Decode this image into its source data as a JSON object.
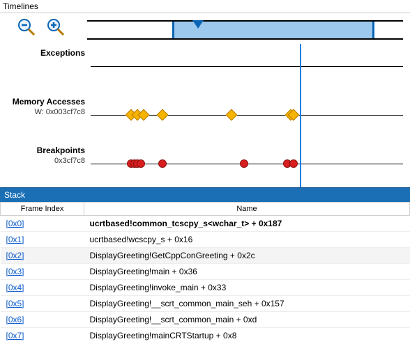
{
  "timelines": {
    "title": "Timelines",
    "playhead_pct": 67,
    "overview": {
      "sel_start_pct": 27,
      "sel_end_pct": 91,
      "marker_pct": 35
    },
    "tracks": [
      {
        "title": "Exceptions",
        "sub": "",
        "marker": "none",
        "positions": []
      },
      {
        "title": "Memory Accesses",
        "sub": "W: 0x003cf7c8",
        "marker": "diamond",
        "positions": [
          13,
          15,
          17,
          23,
          45,
          64,
          65
        ]
      },
      {
        "title": "Breakpoints",
        "sub": "0x3cf7c8",
        "marker": "circle",
        "positions": [
          13,
          14,
          15,
          16,
          23,
          49,
          63,
          65
        ]
      }
    ]
  },
  "stack": {
    "title": "Stack",
    "columns": {
      "frame_index": "Frame Index",
      "name": "Name"
    },
    "rows": [
      {
        "idx": "[0x0]",
        "name": "ucrtbased!common_tcscpy_s<wchar_t> + 0x187",
        "bold": true
      },
      {
        "idx": "[0x1]",
        "name": "ucrtbased!wcscpy_s + 0x16"
      },
      {
        "idx": "[0x2]",
        "name": "DisplayGreeting!GetCppConGreeting + 0x2c",
        "selected": true
      },
      {
        "idx": "[0x3]",
        "name": "DisplayGreeting!main + 0x36"
      },
      {
        "idx": "[0x4]",
        "name": "DisplayGreeting!invoke_main + 0x33"
      },
      {
        "idx": "[0x5]",
        "name": "DisplayGreeting!__scrt_common_main_seh + 0x157"
      },
      {
        "idx": "[0x6]",
        "name": "DisplayGreeting!__scrt_common_main + 0xd"
      },
      {
        "idx": "[0x7]",
        "name": "DisplayGreeting!mainCRTStartup + 0x8"
      }
    ]
  },
  "colors": {
    "accent": "#0a7de0",
    "diamond_fill": "#f5b400",
    "diamond_stroke": "#b97a00",
    "circle_fill": "#d81e1e",
    "circle_stroke": "#8a0f0f",
    "selection_fill": "#9cc8ee",
    "selection_edge": "#0a64b4"
  }
}
